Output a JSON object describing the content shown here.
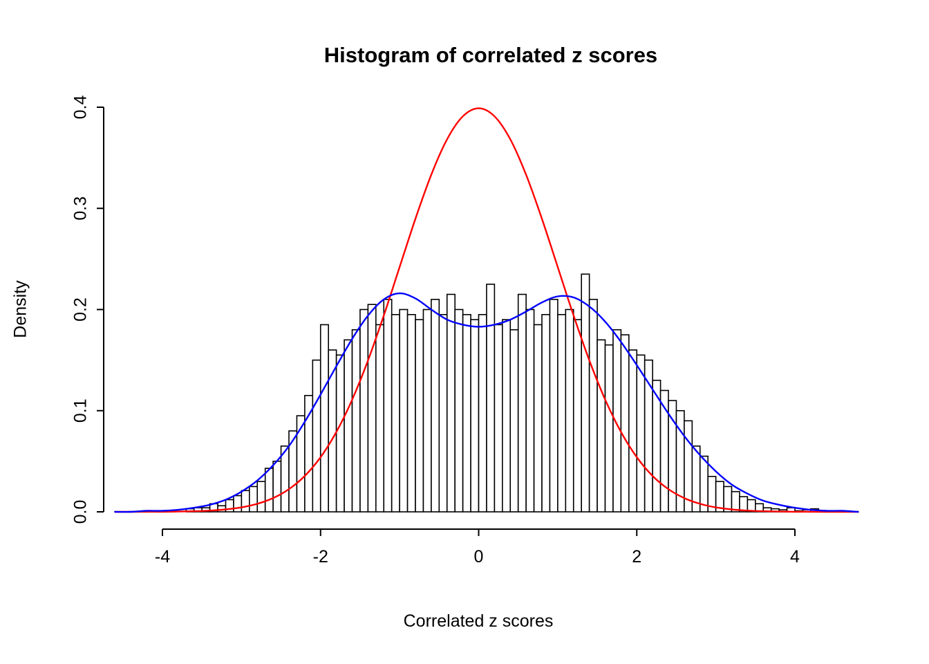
{
  "title": "Histogram of correlated z scores",
  "xlabel": "Correlated z scores",
  "ylabel": "Density",
  "colors": {
    "normal_curve": "#FF0000",
    "density_curve": "#0000FF",
    "bar_fill": "#FFFFFF",
    "bar_stroke": "#000000",
    "axis": "#000000",
    "background": "#FFFFFF"
  },
  "chart_data": {
    "type": "bar",
    "subtype": "histogram with density overlays",
    "title": "Histogram of correlated z scores",
    "xlabel": "Correlated z scores",
    "ylabel": "Density",
    "xlim": [
      -4.7,
      5.0
    ],
    "ylim": [
      0,
      0.4
    ],
    "x_ticks": [
      "-4",
      "-2",
      "0",
      "2",
      "4"
    ],
    "x_tick_values": [
      -4,
      -2,
      0,
      2,
      4
    ],
    "y_ticks": [
      "0.0",
      "0.1",
      "0.2",
      "0.3",
      "0.4"
    ],
    "y_tick_values": [
      0,
      0.1,
      0.2,
      0.3,
      0.4
    ],
    "grid": "off",
    "legend": "none",
    "histogram": {
      "bin_start": -3.7,
      "bin_width": 0.1,
      "densities": [
        0.003,
        0.004,
        0.004,
        0.008,
        0.006,
        0.012,
        0.016,
        0.021,
        0.025,
        0.03,
        0.043,
        0.05,
        0.065,
        0.08,
        0.095,
        0.115,
        0.15,
        0.185,
        0.16,
        0.155,
        0.17,
        0.18,
        0.2,
        0.205,
        0.185,
        0.21,
        0.195,
        0.2,
        0.195,
        0.19,
        0.2,
        0.21,
        0.195,
        0.215,
        0.2,
        0.195,
        0.19,
        0.195,
        0.225,
        0.185,
        0.19,
        0.18,
        0.215,
        0.2,
        0.185,
        0.195,
        0.21,
        0.195,
        0.2,
        0.19,
        0.235,
        0.21,
        0.17,
        0.165,
        0.18,
        0.175,
        0.16,
        0.155,
        0.15,
        0.13,
        0.12,
        0.11,
        0.1,
        0.09,
        0.065,
        0.055,
        0.035,
        0.03,
        0.025,
        0.02,
        0.015,
        0.012,
        0.008,
        0.004,
        0.003,
        0.002,
        0.004,
        0.001,
        0.002,
        0.003,
        0.001
      ]
    },
    "curves": [
      {
        "name": "standard-normal-density",
        "color": "#FF0000",
        "x_start": -4.6,
        "x_step": 0.2,
        "y": [
          0.0,
          0.0,
          0.0001,
          0.0001,
          0.0003,
          0.0006,
          0.0012,
          0.0024,
          0.0044,
          0.0079,
          0.0136,
          0.0224,
          0.0355,
          0.054,
          0.079,
          0.1109,
          0.1497,
          0.1942,
          0.242,
          0.2897,
          0.3332,
          0.3683,
          0.391,
          0.3989,
          0.391,
          0.3683,
          0.3332,
          0.2897,
          0.242,
          0.1942,
          0.1497,
          0.1109,
          0.079,
          0.054,
          0.0355,
          0.0224,
          0.0136,
          0.0079,
          0.0044,
          0.0024,
          0.0012,
          0.0006,
          0.0003,
          0.0001,
          0.0001,
          0.0,
          0.0,
          0.0
        ]
      },
      {
        "name": "kernel-density-estimate",
        "color": "#0000FF",
        "x_start": -4.6,
        "x_step": 0.2,
        "y": [
          0.0,
          0.0,
          0.001,
          0.001,
          0.002,
          0.004,
          0.007,
          0.012,
          0.02,
          0.031,
          0.046,
          0.065,
          0.089,
          0.116,
          0.144,
          0.171,
          0.194,
          0.21,
          0.216,
          0.211,
          0.2,
          0.19,
          0.185,
          0.183,
          0.185,
          0.19,
          0.198,
          0.207,
          0.213,
          0.212,
          0.203,
          0.188,
          0.168,
          0.145,
          0.121,
          0.097,
          0.075,
          0.056,
          0.04,
          0.027,
          0.018,
          0.011,
          0.007,
          0.004,
          0.002,
          0.001,
          0.001,
          0.0
        ]
      }
    ]
  }
}
